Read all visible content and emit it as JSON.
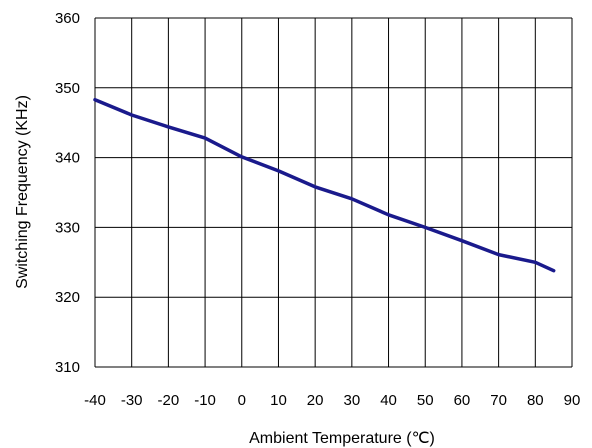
{
  "chart_data": {
    "type": "line",
    "title": "",
    "xlabel": "Ambient Temperature (℃)",
    "ylabel": "Switching Frequency (KHz)",
    "xlim": [
      -40,
      90
    ],
    "ylim": [
      310,
      360
    ],
    "xticks": [
      -40,
      -30,
      -20,
      -10,
      0,
      10,
      20,
      30,
      40,
      50,
      60,
      70,
      80,
      90
    ],
    "yticks": [
      310,
      320,
      330,
      340,
      350,
      360
    ],
    "grid": true,
    "legend": "none",
    "series": [
      {
        "color": "#1a1a8c",
        "x": [
          -40,
          -30,
          -20,
          -10,
          0,
          10,
          20,
          30,
          40,
          50,
          60,
          70,
          80,
          85
        ],
        "y": [
          348.3,
          346.1,
          344.4,
          342.8,
          340.1,
          338.1,
          335.8,
          334.1,
          331.8,
          330.0,
          328.1,
          326.1,
          325.0,
          323.8
        ]
      }
    ]
  }
}
